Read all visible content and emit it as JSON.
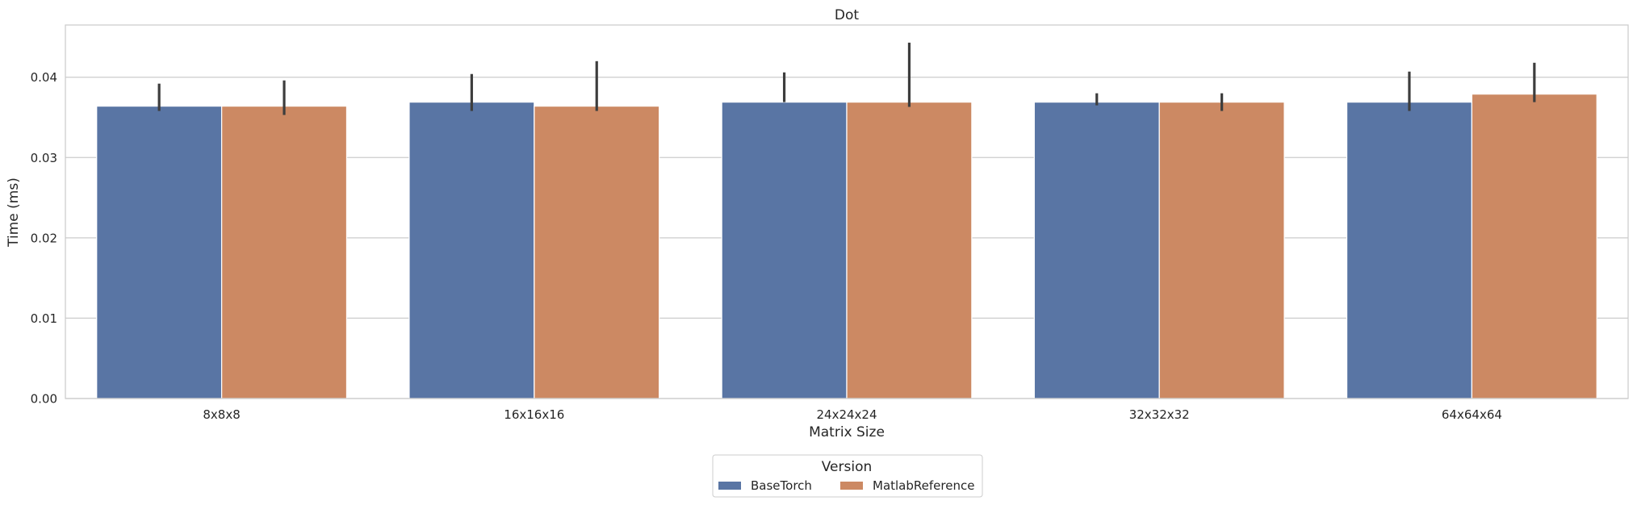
{
  "chart_data": {
    "type": "bar",
    "title": "Dot",
    "xlabel": "Matrix Size",
    "ylabel": "Time (ms)",
    "categories": [
      "8x8x8",
      "16x16x16",
      "24x24x24",
      "32x32x32",
      "64x64x64"
    ],
    "ylim": [
      0,
      0.0465
    ],
    "yticks": [
      "0.00",
      "0.01",
      "0.02",
      "0.03",
      "0.04"
    ],
    "ytick_values": [
      0,
      0.01,
      0.02,
      0.03,
      0.04
    ],
    "grid": "horizontal",
    "legend": {
      "title": "Version",
      "placement": "bottom-center"
    },
    "series": [
      {
        "name": "BaseTorch",
        "color": "#5975a4",
        "values": [
          0.0364,
          0.0369,
          0.0369,
          0.0369,
          0.0369
        ],
        "error_low": [
          0.0358,
          0.0358,
          0.0369,
          0.0365,
          0.0358
        ],
        "error_high": [
          0.0392,
          0.0404,
          0.0406,
          0.038,
          0.0407
        ]
      },
      {
        "name": "MatlabReference",
        "color": "#cc8963",
        "values": [
          0.0364,
          0.0364,
          0.0369,
          0.0369,
          0.0379
        ],
        "error_low": [
          0.0353,
          0.0358,
          0.0363,
          0.0358,
          0.0369
        ],
        "error_high": [
          0.0396,
          0.042,
          0.0443,
          0.038,
          0.0418
        ]
      }
    ]
  }
}
